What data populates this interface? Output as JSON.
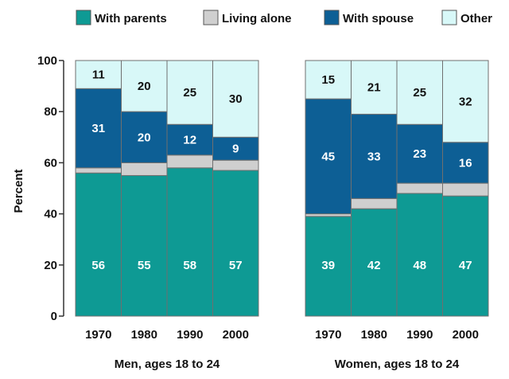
{
  "chart_data": {
    "type": "bar",
    "stacked": true,
    "ylabel": "Percent",
    "ylim": [
      0,
      100
    ],
    "yticks": [
      0,
      20,
      40,
      60,
      80,
      100
    ],
    "legend_position": "top",
    "series": [
      {
        "name": "With parents",
        "color": "#0e9a94"
      },
      {
        "name": "Living alone",
        "color": "#cfcfcf"
      },
      {
        "name": "With spouse",
        "color": "#0d5f95"
      },
      {
        "name": "Other",
        "color": "#d8f8f8"
      }
    ],
    "groups": [
      {
        "label": "Men, ages 18 to 24",
        "categories": [
          "1970",
          "1980",
          "1990",
          "2000"
        ],
        "values": {
          "With parents": [
            56,
            55,
            58,
            57
          ],
          "Living alone": [
            2,
            5,
            5,
            4
          ],
          "With spouse": [
            31,
            20,
            12,
            9
          ],
          "Other": [
            11,
            20,
            25,
            30
          ]
        }
      },
      {
        "label": "Women, ages 18 to 24",
        "categories": [
          "1970",
          "1980",
          "1990",
          "2000"
        ],
        "values": {
          "With parents": [
            39,
            42,
            48,
            47
          ],
          "Living alone": [
            1,
            4,
            4,
            5
          ],
          "With spouse": [
            45,
            33,
            23,
            16
          ],
          "Other": [
            15,
            21,
            25,
            32
          ]
        }
      }
    ]
  }
}
